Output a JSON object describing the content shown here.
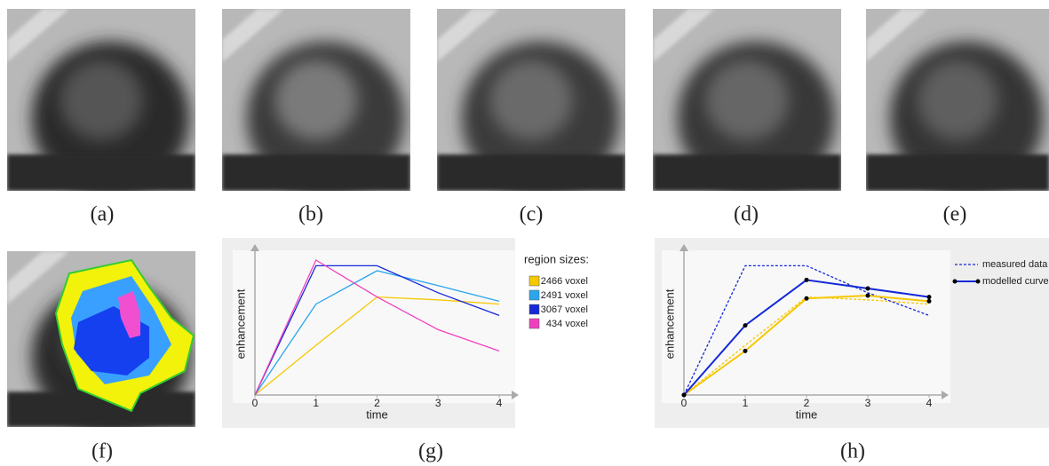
{
  "panel_labels": [
    "(a)",
    "(b)",
    "(c)",
    "(d)",
    "(e)",
    "(f)",
    "(g)",
    "(h)"
  ],
  "chart_data": [
    {
      "type": "line",
      "xlabel": "time",
      "ylabel": "enhancement",
      "x": [
        0,
        1,
        2,
        3,
        4
      ],
      "xlim": [
        0,
        4
      ],
      "xticks": [
        0,
        1,
        2,
        3,
        4
      ],
      "ylim": [
        0,
        1
      ],
      "legend_title": "region sizes:",
      "series": [
        {
          "name": "2466 voxel",
          "color": "#f5c800",
          "values": [
            0,
            0.35,
            0.69,
            0.67,
            0.64
          ]
        },
        {
          "name": "2491 voxel",
          "color": "#2aa6ee",
          "values": [
            0,
            0.64,
            0.875,
            0.77,
            0.66
          ]
        },
        {
          "name": "3067 voxel",
          "color": "#1428d8",
          "values": [
            0,
            0.91,
            0.91,
            0.72,
            0.56
          ]
        },
        {
          "name": "434 voxel",
          "color": "#f040c0",
          "values": [
            0,
            0.95,
            0.69,
            0.46,
            0.31
          ]
        }
      ]
    },
    {
      "type": "line",
      "xlabel": "time",
      "ylabel": "enhancement",
      "x": [
        0,
        1,
        2,
        3,
        4
      ],
      "xlim": [
        0,
        4
      ],
      "xticks": [
        0,
        1,
        2,
        3,
        4
      ],
      "ylim": [
        0,
        1
      ],
      "series": [
        {
          "color": "#f5c800",
          "style": "dashed",
          "values": [
            0,
            0.35,
            0.69,
            0.67,
            0.64
          ]
        },
        {
          "color": "#1428d8",
          "style": "dashed",
          "values": [
            0,
            0.91,
            0.91,
            0.72,
            0.56
          ]
        },
        {
          "color": "#f5c800",
          "style": "solid",
          "markers": true,
          "values": [
            0,
            0.31,
            0.68,
            0.7,
            0.66
          ]
        },
        {
          "color": "#1428d8",
          "style": "solid",
          "markers": true,
          "values": [
            0,
            0.49,
            0.81,
            0.75,
            0.69
          ]
        }
      ],
      "legend": [
        {
          "label": "measured data",
          "style": "dashed",
          "color": "#1428d8"
        },
        {
          "label": "modelled curve",
          "style": "solid",
          "color": "#1428d8"
        }
      ]
    }
  ]
}
